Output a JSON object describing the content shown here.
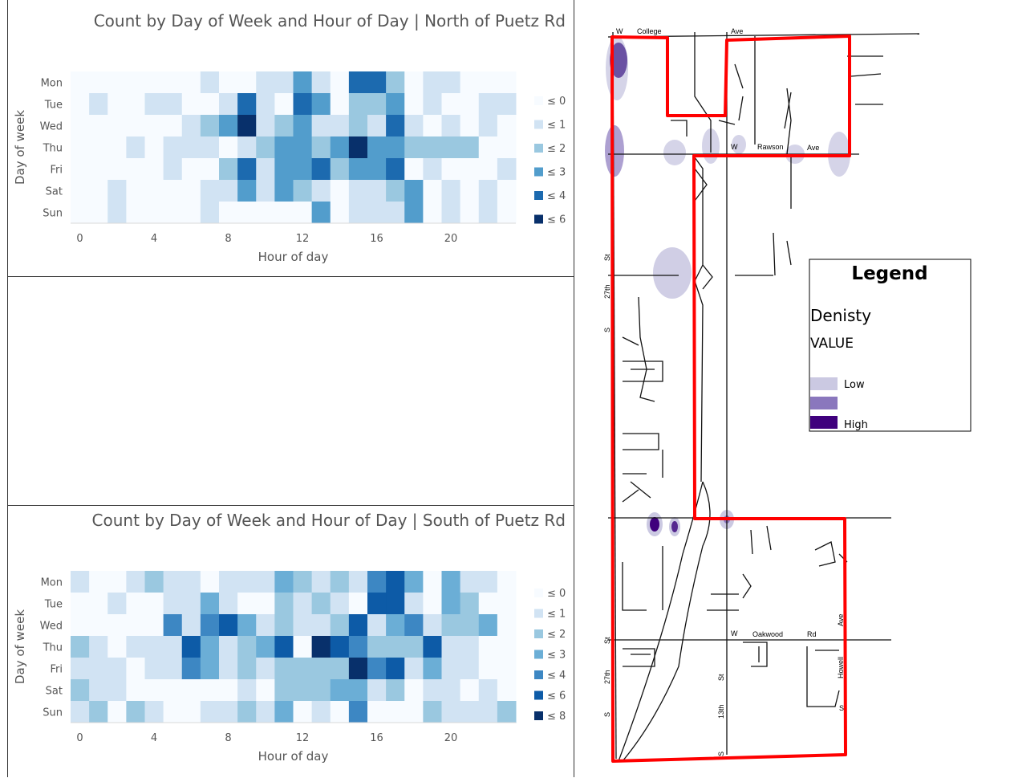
{
  "chart_data": [
    {
      "type": "heatmap",
      "title": "Count by Day of Week and Hour of Day | North of Puetz Rd",
      "xlabel": "Hour of day",
      "ylabel": "Day of week",
      "xticks": [
        "0",
        "4",
        "8",
        "12",
        "16",
        "20"
      ],
      "rows": [
        "Mon",
        "Tue",
        "Wed",
        "Thu",
        "Fri",
        "Sat",
        "Sun"
      ],
      "legend": [
        {
          "label": "≤ 0",
          "color": "#f7fbff"
        },
        {
          "label": "≤ 1",
          "color": "#d1e3f3"
        },
        {
          "label": "≤ 2",
          "color": "#9ac8e0"
        },
        {
          "label": "≤ 3",
          "color": "#529dcc"
        },
        {
          "label": "≤ 4",
          "color": "#1c6aaf"
        },
        {
          "label": "≤ 6",
          "color": "#08306b"
        }
      ],
      "values": [
        [
          0,
          0,
          0,
          0,
          0,
          0,
          0,
          1,
          0,
          0,
          1,
          1,
          3,
          1,
          0,
          4,
          4,
          2,
          0,
          1,
          1,
          0,
          0,
          0
        ],
        [
          0,
          1,
          0,
          0,
          1,
          1,
          0,
          0,
          1,
          4,
          1,
          0,
          4,
          3,
          0,
          2,
          2,
          3,
          0,
          1,
          0,
          0,
          1,
          1
        ],
        [
          0,
          0,
          0,
          0,
          0,
          0,
          1,
          2,
          3,
          5,
          1,
          2,
          3,
          1,
          1,
          2,
          1,
          4,
          1,
          0,
          1,
          0,
          1,
          0
        ],
        [
          0,
          0,
          0,
          1,
          0,
          1,
          1,
          1,
          0,
          1,
          2,
          3,
          3,
          2,
          3,
          5,
          3,
          3,
          2,
          2,
          2,
          2,
          0,
          0
        ],
        [
          0,
          0,
          0,
          0,
          0,
          1,
          0,
          0,
          2,
          4,
          1,
          3,
          3,
          4,
          2,
          3,
          3,
          4,
          0,
          1,
          0,
          0,
          0,
          1
        ],
        [
          0,
          0,
          1,
          0,
          0,
          0,
          0,
          1,
          1,
          3,
          1,
          3,
          2,
          1,
          0,
          1,
          1,
          2,
          3,
          0,
          1,
          0,
          1,
          0
        ],
        [
          0,
          0,
          1,
          0,
          0,
          0,
          0,
          1,
          0,
          0,
          0,
          0,
          0,
          3,
          0,
          1,
          1,
          1,
          3,
          0,
          1,
          0,
          1,
          0
        ]
      ]
    },
    {
      "type": "heatmap",
      "title": "Count by Day of Week and Hour of Day | South of Puetz Rd",
      "xlabel": "Hour of day",
      "ylabel": "Day of week",
      "xticks": [
        "0",
        "4",
        "8",
        "12",
        "16",
        "20"
      ],
      "rows": [
        "Mon",
        "Tue",
        "Wed",
        "Thu",
        "Fri",
        "Sat",
        "Sun"
      ],
      "legend": [
        {
          "label": "≤ 0",
          "color": "#f7fbff"
        },
        {
          "label": "≤ 1",
          "color": "#d1e3f3"
        },
        {
          "label": "≤ 2",
          "color": "#9ac8e0"
        },
        {
          "label": "≤ 3",
          "color": "#6baed6"
        },
        {
          "label": "≤ 4",
          "color": "#3d87c3"
        },
        {
          "label": "≤ 6",
          "color": "#0d5ba7"
        },
        {
          "label": "≤ 8",
          "color": "#08306b"
        }
      ],
      "values": [
        [
          1,
          0,
          0,
          1,
          2,
          1,
          1,
          0,
          1,
          1,
          1,
          3,
          2,
          1,
          2,
          1,
          4,
          5,
          3,
          0,
          3,
          1,
          1,
          0
        ],
        [
          0,
          0,
          1,
          0,
          0,
          1,
          1,
          3,
          1,
          0,
          0,
          2,
          1,
          2,
          1,
          0,
          5,
          5,
          1,
          0,
          3,
          2,
          0,
          0
        ],
        [
          0,
          0,
          0,
          0,
          0,
          4,
          1,
          4,
          5,
          3,
          1,
          2,
          1,
          1,
          2,
          5,
          1,
          3,
          4,
          1,
          2,
          2,
          3,
          0
        ],
        [
          2,
          1,
          0,
          1,
          1,
          1,
          5,
          3,
          1,
          2,
          3,
          5,
          0,
          6,
          5,
          4,
          2,
          2,
          2,
          5,
          1,
          1,
          0,
          0
        ],
        [
          1,
          1,
          1,
          0,
          1,
          1,
          4,
          3,
          1,
          2,
          1,
          2,
          2,
          2,
          2,
          6,
          4,
          5,
          1,
          3,
          1,
          1,
          0,
          0
        ],
        [
          2,
          1,
          1,
          0,
          0,
          0,
          0,
          0,
          0,
          1,
          0,
          2,
          2,
          2,
          3,
          3,
          1,
          2,
          0,
          1,
          1,
          0,
          1,
          0
        ],
        [
          1,
          2,
          0,
          2,
          1,
          0,
          0,
          1,
          1,
          2,
          1,
          3,
          0,
          1,
          0,
          4,
          0,
          0,
          0,
          2,
          1,
          1,
          1,
          2
        ]
      ]
    }
  ],
  "map": {
    "legend": {
      "title": "Legend",
      "field": "Denisty",
      "subfield": "VALUE",
      "items": [
        {
          "label": "Low",
          "color": "#cbc9e2"
        },
        {
          "label": "",
          "color": "#8a77bd"
        },
        {
          "label": "High",
          "color": "#3f007d"
        }
      ]
    },
    "labels": {
      "w1": "W",
      "college": "College",
      "ave1": "Ave",
      "w2": "W",
      "rawson": "Rawson",
      "ave2": "Ave",
      "w3": "W",
      "oakwood": "Oakwood",
      "rd": "Rd",
      "ave3": "Ave",
      "howell": "Howell",
      "s1": "S",
      "st1": "St",
      "th27a": "27th",
      "s2": "S",
      "st2": "St",
      "th27b": "27th",
      "s3": "S",
      "st3": "St",
      "th13": "13th",
      "s4": "S"
    },
    "colors": {
      "boundary": "#ff0000",
      "road": "#111111"
    }
  }
}
